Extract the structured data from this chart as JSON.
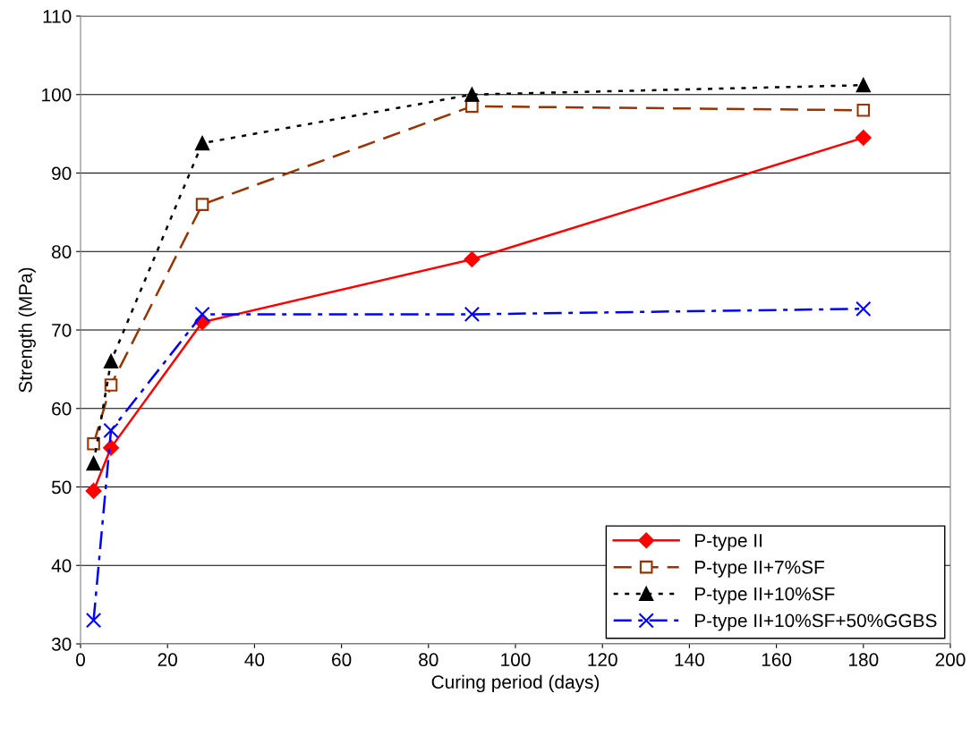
{
  "chart_data": {
    "type": "line",
    "xlabel": "Curing period (days)",
    "ylabel": "Strength (MPa)",
    "x": [
      3,
      7,
      28,
      90,
      180
    ],
    "series": [
      {
        "name": "P-type II",
        "color": "#ff0000",
        "values": [
          49.5,
          55,
          71,
          79,
          94.5
        ],
        "marker": "diamond",
        "line_style": "solid"
      },
      {
        "name": "P-type II+7%SF",
        "color": "#993300",
        "values": [
          55.5,
          63,
          86,
          98.5,
          98
        ],
        "marker": "square",
        "line_style": "dashed"
      },
      {
        "name": "P-type II+10%SF",
        "color": "#000000",
        "values": [
          53,
          66,
          93.8,
          100,
          101.2
        ],
        "marker": "triangle",
        "line_style": "dotted"
      },
      {
        "name": "P-type II+10%SF+50%GGBS",
        "color": "#0000ff",
        "values": [
          33,
          57.2,
          72,
          72,
          72.7
        ],
        "marker": "cross",
        "line_style": "dashdot"
      }
    ],
    "xlim": [
      0,
      200
    ],
    "xticks": [
      0,
      20,
      40,
      60,
      80,
      100,
      120,
      140,
      160,
      180,
      200
    ],
    "ylim": [
      30,
      110
    ],
    "yticks": [
      30,
      40,
      50,
      60,
      70,
      80,
      90,
      100,
      110
    ],
    "grid": "y",
    "legend": "bottom right"
  }
}
